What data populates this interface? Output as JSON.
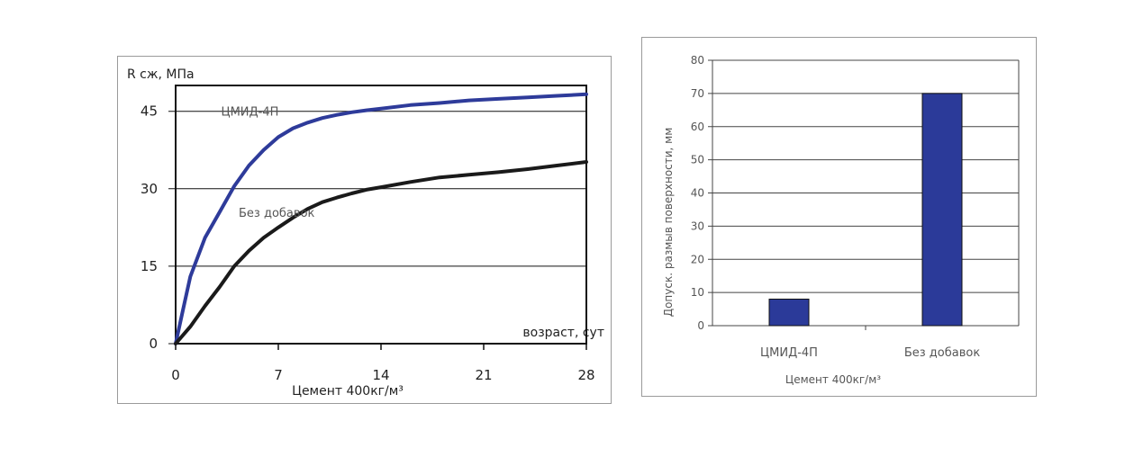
{
  "chart_data": [
    {
      "type": "line",
      "ylabel": "R сж, МПа",
      "xlabel": "возраст, сут",
      "caption": "Цемент 400кг/м³",
      "ylim": [
        0,
        50
      ],
      "xlim": [
        0,
        28
      ],
      "x_ticks": [
        "0",
        "7",
        "14",
        "21",
        "28"
      ],
      "y_ticks": [
        "0",
        "15",
        "30",
        "45"
      ],
      "grid": "horizontal",
      "series": [
        {
          "name": "ЦМИД-4П",
          "color": "#2e3b9a",
          "x": [
            0,
            0.5,
            1,
            2,
            3,
            4,
            5,
            6,
            7,
            8,
            9,
            10,
            11,
            12,
            13,
            14,
            16,
            18,
            20,
            22,
            24,
            26,
            28
          ],
          "y": [
            0,
            6.5,
            13,
            20.5,
            25.5,
            30.5,
            34.5,
            37.5,
            40,
            41.7,
            42.8,
            43.7,
            44.3,
            44.8,
            45.2,
            45.5,
            46.2,
            46.6,
            47.1,
            47.4,
            47.7,
            48,
            48.3
          ]
        },
        {
          "name": "Без добавок",
          "color": "#1a1a1a",
          "x": [
            0,
            1,
            2,
            3,
            4,
            5,
            6,
            7,
            8,
            9,
            10,
            11,
            12,
            13,
            14,
            16,
            18,
            20,
            22,
            24,
            26,
            28
          ],
          "y": [
            0,
            3.3,
            7.3,
            11,
            15,
            18,
            20.5,
            22.5,
            24.4,
            26.1,
            27.4,
            28.3,
            29.1,
            29.8,
            30.3,
            31.3,
            32.2,
            32.7,
            33.2,
            33.8,
            34.5,
            35.2
          ]
        }
      ]
    },
    {
      "type": "bar",
      "ylabel": "Допуск. размыв поверхности, мм",
      "xlabel": "Цемент 400кг/м³",
      "categories": [
        "ЦМИД-4П",
        "Без добавок"
      ],
      "values": [
        8,
        70
      ],
      "ylim": [
        0,
        80
      ],
      "y_ticks": [
        "0",
        "10",
        "20",
        "30",
        "40",
        "50",
        "60",
        "70",
        "80"
      ],
      "grid": "horizontal",
      "bar_color": "#2b3a99"
    }
  ]
}
